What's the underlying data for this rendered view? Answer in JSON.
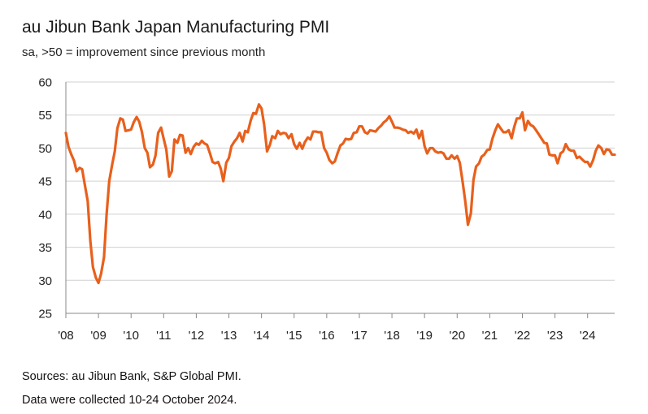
{
  "header": {
    "title": "au Jibun Bank Japan Manufacturing PMI",
    "subtitle": "sa, >50 = improvement since previous month"
  },
  "footer": {
    "sources": "Sources: au Jibun Bank, S&P Global PMI.",
    "collected": "Data were collected 10-24 October 2024."
  },
  "colors": {
    "line": "#E8601C",
    "grid": "#D0D0D0",
    "axis": "#888888"
  },
  "chart_data": {
    "type": "line",
    "title": "au Jibun Bank Japan Manufacturing PMI",
    "subtitle": "sa, >50 = improvement since previous month",
    "xlabel": "",
    "ylabel": "",
    "ylim": [
      25,
      60
    ],
    "yticks": [
      25,
      30,
      35,
      40,
      45,
      50,
      55,
      60
    ],
    "xlim": [
      2008.0,
      2024.83
    ],
    "xticks": [
      {
        "year": 2008,
        "label": "'08"
      },
      {
        "year": 2009,
        "label": "'09"
      },
      {
        "year": 2010,
        "label": "'10"
      },
      {
        "year": 2011,
        "label": "'11"
      },
      {
        "year": 2012,
        "label": "'12"
      },
      {
        "year": 2013,
        "label": "'13"
      },
      {
        "year": 2014,
        "label": "'14"
      },
      {
        "year": 2015,
        "label": "'15"
      },
      {
        "year": 2016,
        "label": "'16"
      },
      {
        "year": 2017,
        "label": "'17"
      },
      {
        "year": 2018,
        "label": "'18"
      },
      {
        "year": 2019,
        "label": "'19"
      },
      {
        "year": 2020,
        "label": "'20"
      },
      {
        "year": 2021,
        "label": "'21"
      },
      {
        "year": 2022,
        "label": "'22"
      },
      {
        "year": 2023,
        "label": "'23"
      },
      {
        "year": 2024,
        "label": "'24"
      }
    ],
    "grid": true,
    "series": [
      {
        "name": "Manufacturing PMI",
        "x": [
          2008.0,
          2008.08,
          2008.17,
          2008.25,
          2008.33,
          2008.42,
          2008.5,
          2008.58,
          2008.67,
          2008.75,
          2008.83,
          2008.92,
          2009.0,
          2009.08,
          2009.17,
          2009.25,
          2009.33,
          2009.42,
          2009.5,
          2009.58,
          2009.67,
          2009.75,
          2009.83,
          2009.92,
          2010.0,
          2010.08,
          2010.17,
          2010.25,
          2010.33,
          2010.42,
          2010.5,
          2010.58,
          2010.67,
          2010.75,
          2010.83,
          2010.92,
          2011.0,
          2011.08,
          2011.17,
          2011.25,
          2011.33,
          2011.42,
          2011.5,
          2011.58,
          2011.67,
          2011.75,
          2011.83,
          2011.92,
          2012.0,
          2012.08,
          2012.17,
          2012.25,
          2012.33,
          2012.42,
          2012.5,
          2012.58,
          2012.67,
          2012.75,
          2012.83,
          2012.92,
          2013.0,
          2013.08,
          2013.17,
          2013.25,
          2013.33,
          2013.42,
          2013.5,
          2013.58,
          2013.67,
          2013.75,
          2013.83,
          2013.92,
          2014.0,
          2014.08,
          2014.17,
          2014.25,
          2014.33,
          2014.42,
          2014.5,
          2014.58,
          2014.67,
          2014.75,
          2014.83,
          2014.92,
          2015.0,
          2015.08,
          2015.17,
          2015.25,
          2015.33,
          2015.42,
          2015.5,
          2015.58,
          2015.67,
          2015.75,
          2015.83,
          2015.92,
          2016.0,
          2016.08,
          2016.17,
          2016.25,
          2016.33,
          2016.42,
          2016.5,
          2016.58,
          2016.67,
          2016.75,
          2016.83,
          2016.92,
          2017.0,
          2017.08,
          2017.17,
          2017.25,
          2017.33,
          2017.42,
          2017.5,
          2017.58,
          2017.67,
          2017.75,
          2017.83,
          2017.92,
          2018.0,
          2018.08,
          2018.17,
          2018.25,
          2018.33,
          2018.42,
          2018.5,
          2018.58,
          2018.67,
          2018.75,
          2018.83,
          2018.92,
          2019.0,
          2019.08,
          2019.17,
          2019.25,
          2019.33,
          2019.42,
          2019.5,
          2019.58,
          2019.67,
          2019.75,
          2019.83,
          2019.92,
          2020.0,
          2020.08,
          2020.17,
          2020.25,
          2020.33,
          2020.42,
          2020.5,
          2020.58,
          2020.67,
          2020.75,
          2020.83,
          2020.92,
          2021.0,
          2021.08,
          2021.17,
          2021.25,
          2021.33,
          2021.42,
          2021.5,
          2021.58,
          2021.67,
          2021.75,
          2021.83,
          2021.92,
          2022.0,
          2022.08,
          2022.17,
          2022.25,
          2022.33,
          2022.42,
          2022.5,
          2022.58,
          2022.67,
          2022.75,
          2022.83,
          2022.92,
          2023.0,
          2023.08,
          2023.17,
          2023.25,
          2023.33,
          2023.42,
          2023.5,
          2023.58,
          2023.67,
          2023.75,
          2023.83,
          2023.92,
          2024.0,
          2024.08,
          2024.17,
          2024.25,
          2024.33,
          2024.42,
          2024.5,
          2024.58,
          2024.67,
          2024.75,
          2024.83
        ],
        "values": [
          52.3,
          50.2,
          49.0,
          48.1,
          46.5,
          47.0,
          46.8,
          44.5,
          42.0,
          36.0,
          32.0,
          30.4,
          29.6,
          31.0,
          33.5,
          40.0,
          45.0,
          47.5,
          49.5,
          53.0,
          54.5,
          54.3,
          52.6,
          52.7,
          52.8,
          53.9,
          54.7,
          54.0,
          52.5,
          50.0,
          49.3,
          47.1,
          47.5,
          48.9,
          52.3,
          53.1,
          51.4,
          49.8,
          45.7,
          46.5,
          51.3,
          50.8,
          52.0,
          51.9,
          49.3,
          50.0,
          49.1,
          50.2,
          50.7,
          50.5,
          51.1,
          50.7,
          50.5,
          49.2,
          47.9,
          47.7,
          47.9,
          46.9,
          45.0,
          47.8,
          48.5,
          50.3,
          51.0,
          51.5,
          52.3,
          51.0,
          52.6,
          52.4,
          54.2,
          55.3,
          55.2,
          56.6,
          56.0,
          53.6,
          49.5,
          50.4,
          51.8,
          51.5,
          52.6,
          52.1,
          52.3,
          52.2,
          51.5,
          52.1,
          50.6,
          49.9,
          50.8,
          49.9,
          50.9,
          51.6,
          51.3,
          52.5,
          52.5,
          52.4,
          52.4,
          50.0,
          49.3,
          48.2,
          47.7,
          48.0,
          49.2,
          50.4,
          50.7,
          51.4,
          51.3,
          51.4,
          52.3,
          52.4,
          53.3,
          53.3,
          52.4,
          52.2,
          52.7,
          52.6,
          52.5,
          53.0,
          53.4,
          53.9,
          54.2,
          54.8,
          54.0,
          53.1,
          53.1,
          53.0,
          52.8,
          52.7,
          52.3,
          52.5,
          52.2,
          52.8,
          51.5,
          52.6,
          50.3,
          49.2,
          50.0,
          50.0,
          49.5,
          49.3,
          49.4,
          49.2,
          48.4,
          48.4,
          48.9,
          48.4,
          48.8,
          47.8,
          44.8,
          41.9,
          38.4,
          40.1,
          45.2,
          47.2,
          47.7,
          48.7,
          49.0,
          49.7,
          49.8,
          51.4,
          52.7,
          53.6,
          53.0,
          52.4,
          52.4,
          52.7,
          51.5,
          53.2,
          54.5,
          54.5,
          55.4,
          52.7,
          54.1,
          53.5,
          53.3,
          52.7,
          52.1,
          51.5,
          50.8,
          50.7,
          49.0,
          48.9,
          48.9,
          47.7,
          49.2,
          49.5,
          50.6,
          49.8,
          49.6,
          49.6,
          48.5,
          48.7,
          48.3,
          47.9,
          47.9,
          47.2,
          48.2,
          49.6,
          50.4,
          50.0,
          49.1,
          49.8,
          49.7,
          49.0,
          49.0
        ]
      }
    ]
  }
}
